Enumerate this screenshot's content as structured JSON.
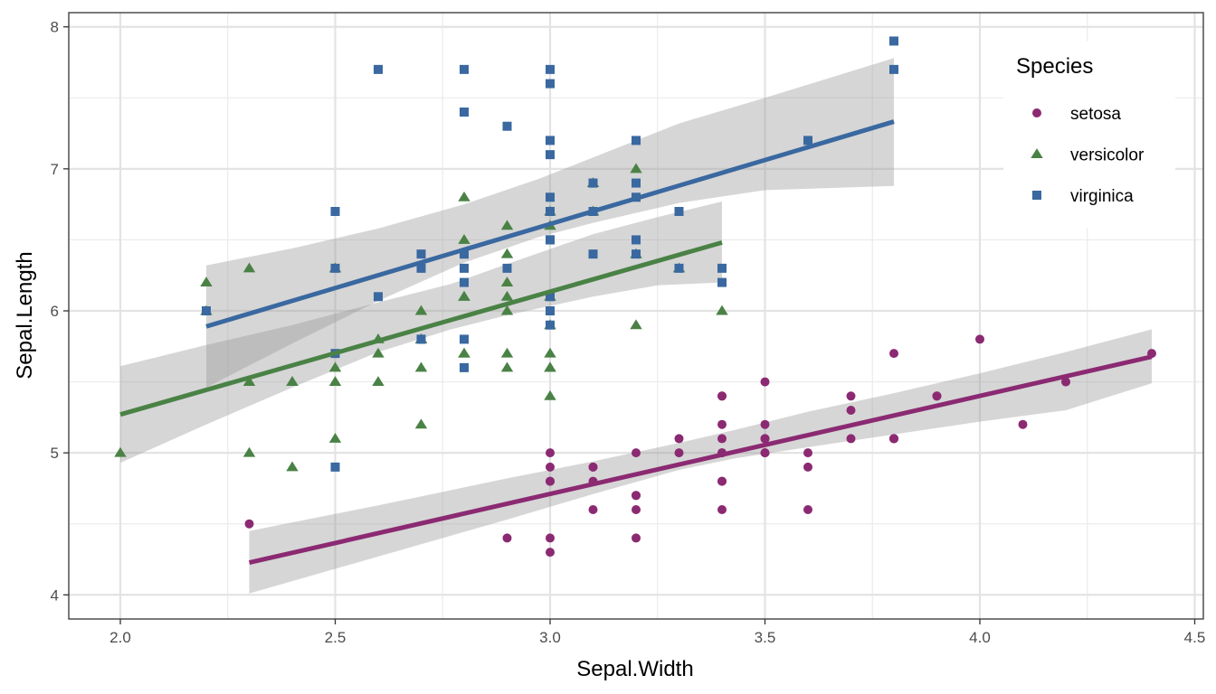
{
  "chart_data": {
    "type": "scatter",
    "xlabel": "Sepal.Width",
    "ylabel": "Sepal.Length",
    "xlim": [
      1.88,
      4.52
    ],
    "ylim": [
      3.83,
      8.1
    ],
    "x_ticks": [
      2.0,
      2.5,
      3.0,
      3.5,
      4.0,
      4.5
    ],
    "x_tick_labels": [
      "2.0",
      "2.5",
      "3.0",
      "3.5",
      "4.0",
      "4.5"
    ],
    "x_minor_ticks": [
      2.25,
      2.75,
      3.25,
      3.75,
      4.25
    ],
    "y_ticks": [
      4,
      5,
      6,
      7,
      8
    ],
    "y_tick_labels": [
      "4",
      "5",
      "6",
      "7",
      "8"
    ],
    "y_minor_ticks": [
      4.5,
      5.5,
      6.5,
      7.5
    ],
    "grid": true,
    "legend": {
      "title": "Species",
      "position": "top-right"
    },
    "series": [
      {
        "name": "setosa",
        "color": "#8B2A72",
        "shape": "circle",
        "points": [
          [
            3.5,
            5.1
          ],
          [
            3.0,
            4.9
          ],
          [
            3.2,
            4.7
          ],
          [
            3.1,
            4.6
          ],
          [
            3.6,
            5.0
          ],
          [
            3.9,
            5.4
          ],
          [
            3.4,
            4.6
          ],
          [
            3.4,
            5.0
          ],
          [
            2.9,
            4.4
          ],
          [
            3.1,
            4.9
          ],
          [
            3.7,
            5.4
          ],
          [
            3.4,
            4.8
          ],
          [
            3.0,
            4.8
          ],
          [
            3.0,
            4.3
          ],
          [
            4.0,
            5.8
          ],
          [
            4.4,
            5.7
          ],
          [
            3.9,
            5.4
          ],
          [
            3.5,
            5.1
          ],
          [
            3.8,
            5.7
          ],
          [
            3.8,
            5.1
          ],
          [
            3.4,
            5.4
          ],
          [
            3.7,
            5.1
          ],
          [
            3.6,
            4.6
          ],
          [
            3.3,
            5.1
          ],
          [
            3.4,
            4.8
          ],
          [
            3.0,
            5.0
          ],
          [
            3.4,
            5.0
          ],
          [
            3.5,
            5.2
          ],
          [
            3.4,
            5.2
          ],
          [
            3.2,
            4.7
          ],
          [
            3.1,
            4.8
          ],
          [
            3.4,
            5.4
          ],
          [
            4.1,
            5.2
          ],
          [
            4.2,
            5.5
          ],
          [
            3.1,
            4.9
          ],
          [
            3.2,
            5.0
          ],
          [
            3.5,
            5.5
          ],
          [
            3.6,
            4.9
          ],
          [
            3.0,
            4.4
          ],
          [
            3.4,
            5.1
          ],
          [
            3.5,
            5.0
          ],
          [
            2.3,
            4.5
          ],
          [
            3.2,
            4.4
          ],
          [
            3.5,
            5.0
          ],
          [
            3.8,
            5.1
          ],
          [
            3.0,
            4.8
          ],
          [
            3.8,
            5.1
          ],
          [
            3.2,
            4.6
          ],
          [
            3.7,
            5.3
          ],
          [
            3.3,
            5.0
          ]
        ],
        "fit": {
          "x_range": [
            2.3,
            4.4
          ],
          "intercept": 2.639,
          "slope": 0.6905
        },
        "band": [
          [
            2.3,
            4.01,
            4.45
          ],
          [
            2.6,
            4.27,
            4.63
          ],
          [
            2.9,
            4.53,
            4.82
          ],
          [
            3.1,
            4.71,
            4.94
          ],
          [
            3.3,
            4.88,
            5.07
          ],
          [
            3.428,
            4.96,
            5.16
          ],
          [
            3.6,
            5.04,
            5.29
          ],
          [
            3.8,
            5.13,
            5.42
          ],
          [
            4.0,
            5.22,
            5.56
          ],
          [
            4.2,
            5.3,
            5.71
          ],
          [
            4.4,
            5.49,
            5.87
          ]
        ]
      },
      {
        "name": "versicolor",
        "color": "#4A8246",
        "shape": "triangle",
        "points": [
          [
            3.2,
            7.0
          ],
          [
            3.2,
            6.4
          ],
          [
            3.1,
            6.9
          ],
          [
            2.3,
            5.5
          ],
          [
            2.8,
            6.5
          ],
          [
            2.8,
            5.7
          ],
          [
            3.3,
            6.3
          ],
          [
            2.4,
            4.9
          ],
          [
            2.9,
            6.6
          ],
          [
            2.7,
            5.2
          ],
          [
            2.0,
            5.0
          ],
          [
            3.0,
            5.9
          ],
          [
            2.2,
            6.0
          ],
          [
            2.9,
            6.1
          ],
          [
            2.9,
            5.6
          ],
          [
            3.1,
            6.7
          ],
          [
            3.0,
            5.6
          ],
          [
            2.7,
            5.8
          ],
          [
            2.2,
            6.2
          ],
          [
            2.5,
            5.6
          ],
          [
            3.2,
            5.9
          ],
          [
            2.8,
            6.1
          ],
          [
            2.5,
            6.3
          ],
          [
            2.8,
            6.1
          ],
          [
            2.9,
            6.4
          ],
          [
            3.0,
            6.6
          ],
          [
            2.8,
            6.8
          ],
          [
            3.0,
            6.7
          ],
          [
            2.9,
            6.0
          ],
          [
            2.6,
            5.7
          ],
          [
            2.4,
            5.5
          ],
          [
            2.4,
            5.5
          ],
          [
            2.7,
            5.8
          ],
          [
            2.7,
            6.0
          ],
          [
            3.0,
            5.4
          ],
          [
            3.4,
            6.0
          ],
          [
            3.1,
            6.7
          ],
          [
            2.3,
            6.3
          ],
          [
            3.0,
            5.6
          ],
          [
            2.5,
            5.5
          ],
          [
            2.6,
            5.5
          ],
          [
            3.0,
            6.1
          ],
          [
            2.6,
            5.8
          ],
          [
            2.3,
            5.0
          ],
          [
            2.7,
            5.6
          ],
          [
            3.0,
            5.7
          ],
          [
            2.9,
            5.7
          ],
          [
            2.9,
            6.2
          ],
          [
            2.5,
            5.1
          ],
          [
            2.8,
            5.7
          ]
        ],
        "fit": {
          "x_range": [
            2.0,
            3.4
          ],
          "intercept": 3.54,
          "slope": 0.8651
        },
        "band": [
          [
            2.0,
            4.93,
            5.61
          ],
          [
            2.2,
            5.2,
            5.76
          ],
          [
            2.4,
            5.46,
            5.9
          ],
          [
            2.6,
            5.71,
            6.06
          ],
          [
            2.77,
            5.87,
            6.19
          ],
          [
            2.9,
            5.97,
            6.33
          ],
          [
            3.1,
            6.1,
            6.54
          ],
          [
            3.25,
            6.18,
            6.66
          ],
          [
            3.4,
            6.2,
            6.77
          ]
        ]
      },
      {
        "name": "virginica",
        "color": "#3A68A0",
        "shape": "square",
        "points": [
          [
            3.3,
            6.3
          ],
          [
            2.7,
            5.8
          ],
          [
            3.0,
            7.1
          ],
          [
            2.9,
            6.3
          ],
          [
            3.0,
            6.5
          ],
          [
            3.0,
            7.6
          ],
          [
            2.5,
            4.9
          ],
          [
            2.9,
            7.3
          ],
          [
            2.5,
            6.7
          ],
          [
            3.6,
            7.2
          ],
          [
            3.2,
            6.5
          ],
          [
            2.7,
            6.4
          ],
          [
            3.0,
            6.8
          ],
          [
            2.5,
            5.7
          ],
          [
            2.8,
            5.8
          ],
          [
            3.2,
            6.4
          ],
          [
            3.0,
            6.5
          ],
          [
            3.8,
            7.7
          ],
          [
            2.6,
            7.7
          ],
          [
            2.2,
            6.0
          ],
          [
            3.2,
            6.9
          ],
          [
            2.8,
            5.6
          ],
          [
            2.8,
            7.7
          ],
          [
            2.7,
            6.3
          ],
          [
            3.3,
            6.7
          ],
          [
            3.2,
            7.2
          ],
          [
            2.8,
            6.2
          ],
          [
            3.0,
            6.1
          ],
          [
            2.8,
            6.4
          ],
          [
            3.0,
            7.2
          ],
          [
            2.8,
            7.4
          ],
          [
            3.8,
            7.9
          ],
          [
            2.8,
            6.4
          ],
          [
            2.8,
            6.3
          ],
          [
            2.6,
            6.1
          ],
          [
            3.0,
            7.7
          ],
          [
            3.4,
            6.3
          ],
          [
            3.1,
            6.4
          ],
          [
            3.0,
            6.0
          ],
          [
            3.1,
            6.9
          ],
          [
            3.1,
            6.7
          ],
          [
            3.1,
            6.9
          ],
          [
            2.7,
            5.8
          ],
          [
            3.2,
            6.8
          ],
          [
            3.3,
            6.7
          ],
          [
            3.0,
            6.7
          ],
          [
            2.5,
            6.3
          ],
          [
            3.0,
            6.5
          ],
          [
            3.4,
            6.2
          ],
          [
            3.0,
            5.9
          ]
        ],
        "fit": {
          "x_range": [
            2.2,
            3.8
          ],
          "intercept": 3.907,
          "slope": 0.9015
        },
        "band": [
          [
            2.2,
            5.46,
            6.32
          ],
          [
            2.4,
            5.77,
            6.44
          ],
          [
            2.6,
            6.07,
            6.58
          ],
          [
            2.8,
            6.34,
            6.75
          ],
          [
            2.974,
            6.52,
            6.93
          ],
          [
            3.1,
            6.62,
            7.08
          ],
          [
            3.3,
            6.76,
            7.32
          ],
          [
            3.5,
            6.85,
            7.5
          ],
          [
            3.8,
            6.88,
            7.78
          ]
        ]
      }
    ]
  }
}
